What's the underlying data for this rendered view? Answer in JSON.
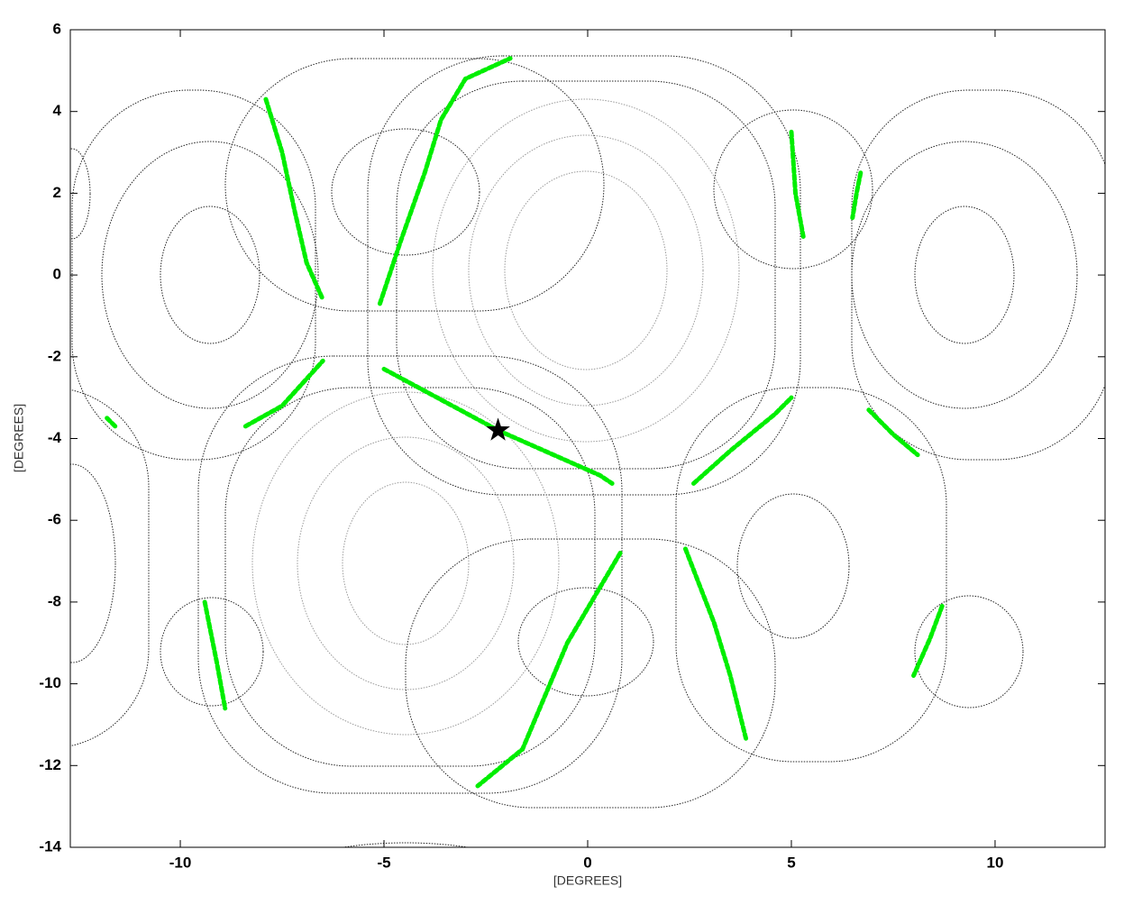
{
  "chart_data": {
    "type": "scatter",
    "xlabel": "[DEGREES]",
    "ylabel": "[DEGREES]",
    "xlim": [
      -12.7,
      12.7
    ],
    "ylim": [
      -14,
      6
    ],
    "xticks": [
      -10,
      -5,
      0,
      5,
      10
    ],
    "yticks": [
      -14,
      -12,
      -10,
      -8,
      -6,
      -4,
      -2,
      0,
      2,
      4,
      6
    ],
    "series": [
      {
        "color": "#00ee00",
        "x": [
          -5.1,
          -4.6,
          -4,
          -3.6,
          -3,
          -1.9
        ],
        "y": [
          -0.7,
          0.8,
          2.5,
          3.8,
          4.8,
          5.3
        ]
      },
      {
        "color": "#00ee00",
        "x": [
          -7.9,
          -7.5,
          -7.2,
          -6.9,
          -6.5
        ],
        "y": [
          4.3,
          3,
          1.6,
          0.3,
          -0.6
        ]
      },
      {
        "color": "#00ee00",
        "x": [
          5,
          5.1,
          5.3
        ],
        "y": [
          3.5,
          2,
          0.9
        ]
      },
      {
        "color": "#00ee00",
        "x": [
          6.7,
          6.6,
          6.5
        ],
        "y": [
          2.5,
          2,
          1.4
        ]
      },
      {
        "color": "#00ee00",
        "x": [
          -8.4,
          -7.5,
          -6.5
        ],
        "y": [
          -3.7,
          -3.2,
          -2.1
        ]
      },
      {
        "color": "#00ee00",
        "x": [
          -11.8,
          -11.6
        ],
        "y": [
          -3.5,
          -3.7
        ]
      },
      {
        "color": "#00ee00",
        "x": [
          -5,
          -2.2,
          0.3,
          0.6
        ],
        "y": [
          -2.3,
          -3.8,
          -4.9,
          -5.1
        ]
      },
      {
        "color": "#00ee00",
        "x": [
          2.6,
          3.5,
          4.6,
          5
        ],
        "y": [
          -5.1,
          -4.3,
          -3.4,
          -3
        ]
      },
      {
        "color": "#00ee00",
        "x": [
          6.9,
          7.5,
          8.1
        ],
        "y": [
          -3.3,
          -3.9,
          -4.4
        ]
      },
      {
        "color": "#00ee00",
        "x": [
          0.8,
          -0.5,
          -1.6,
          -2.7
        ],
        "y": [
          -6.8,
          -9,
          -11.6,
          -12.5
        ]
      },
      {
        "color": "#00ee00",
        "x": [
          2.4,
          3.1,
          3.5,
          3.9
        ],
        "y": [
          -6.7,
          -8.5,
          -9.8,
          -11.4
        ]
      },
      {
        "color": "#00ee00",
        "x": [
          -9.4,
          -9.3,
          -9.1,
          -8.9
        ],
        "y": [
          -8,
          -8.5,
          -9.5,
          -10.6
        ]
      },
      {
        "color": "#00ee00",
        "x": [
          8.7,
          8.4,
          8
        ],
        "y": [
          -8.1,
          -8.9,
          -9.8
        ]
      }
    ],
    "markers": [
      {
        "x": -2.2,
        "y": -3.8,
        "color": "#000000",
        "shape": "star"
      }
    ]
  }
}
